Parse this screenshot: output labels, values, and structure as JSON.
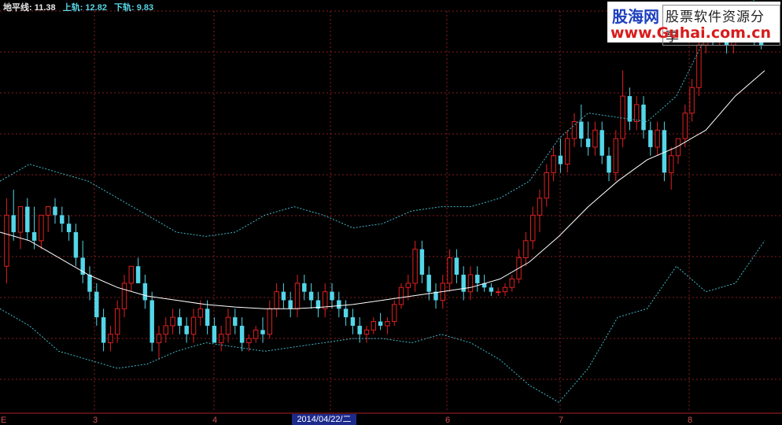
{
  "legend": {
    "ground_line": "地平线: 11.38",
    "upper_band": "上轨: 12.82",
    "lower_band": "下轨: 9.83"
  },
  "watermark": {
    "brand": "股海网",
    "tagline": "股票软件资源分享",
    "url": "www.Guhai.com.cn"
  },
  "xaxis": {
    "left_edge_label": "E",
    "month_labels": [
      "3",
      "4",
      "6",
      "7",
      "8"
    ],
    "crosshair_date": "2014/04/22/二"
  },
  "colors": {
    "background": "#000000",
    "grid": "#8a1c1c",
    "up_candle": "#e02020",
    "down_candle": "#54d6e8",
    "ma_line": "#ffffff",
    "band_line": "#3fb8c8"
  },
  "chart_data": {
    "type": "candlestick",
    "y_range": [
      8.9,
      13.6
    ],
    "candles": [
      [
        10.6,
        11.4,
        10.4,
        11.2
      ],
      [
        11.2,
        11.5,
        10.9,
        11.0
      ],
      [
        11.0,
        11.3,
        10.8,
        11.3
      ],
      [
        11.3,
        11.4,
        10.9,
        11.0
      ],
      [
        11.0,
        11.3,
        10.8,
        10.9
      ],
      [
        10.9,
        11.2,
        10.8,
        11.2
      ],
      [
        11.2,
        11.3,
        11.0,
        11.3
      ],
      [
        11.3,
        11.4,
        11.1,
        11.2
      ],
      [
        11.2,
        11.3,
        11.0,
        11.1
      ],
      [
        11.1,
        11.2,
        10.9,
        11.0
      ],
      [
        11.0,
        11.1,
        10.6,
        10.7
      ],
      [
        10.7,
        10.9,
        10.4,
        10.5
      ],
      [
        10.5,
        10.6,
        10.2,
        10.3
      ],
      [
        10.3,
        10.4,
        9.9,
        10.0
      ],
      [
        10.0,
        10.1,
        9.6,
        9.7
      ],
      [
        9.7,
        9.9,
        9.6,
        9.8
      ],
      [
        9.8,
        10.2,
        9.7,
        10.1
      ],
      [
        10.1,
        10.5,
        10.0,
        10.4
      ],
      [
        10.4,
        10.6,
        10.3,
        10.6
      ],
      [
        10.6,
        10.7,
        10.4,
        10.4
      ],
      [
        10.4,
        10.5,
        10.1,
        10.2
      ],
      [
        10.2,
        10.3,
        9.6,
        9.7
      ],
      [
        9.7,
        9.9,
        9.5,
        9.8
      ],
      [
        9.8,
        10.0,
        9.7,
        9.9
      ],
      [
        9.9,
        10.1,
        9.8,
        10.0
      ],
      [
        10.0,
        10.1,
        9.8,
        9.9
      ],
      [
        9.9,
        10.0,
        9.7,
        9.8
      ],
      [
        9.8,
        10.1,
        9.7,
        10.0
      ],
      [
        10.0,
        10.2,
        9.9,
        10.1
      ],
      [
        10.1,
        10.2,
        9.8,
        9.9
      ],
      [
        9.9,
        10.0,
        9.7,
        9.7
      ],
      [
        9.7,
        9.9,
        9.6,
        9.8
      ],
      [
        9.8,
        10.1,
        9.7,
        10.0
      ],
      [
        10.0,
        10.1,
        9.8,
        9.9
      ],
      [
        9.9,
        10.0,
        9.6,
        9.7
      ],
      [
        9.7,
        9.8,
        9.6,
        9.75
      ],
      [
        9.75,
        9.9,
        9.7,
        9.85
      ],
      [
        9.85,
        10.0,
        9.7,
        9.8
      ],
      [
        9.8,
        10.2,
        9.75,
        10.1
      ],
      [
        10.1,
        10.4,
        10.0,
        10.3
      ],
      [
        10.3,
        10.4,
        10.1,
        10.2
      ],
      [
        10.2,
        10.3,
        10.0,
        10.1
      ],
      [
        10.1,
        10.5,
        10.0,
        10.4
      ],
      [
        10.4,
        10.5,
        10.2,
        10.3
      ],
      [
        10.3,
        10.4,
        10.1,
        10.2
      ],
      [
        10.2,
        10.3,
        10.0,
        10.1
      ],
      [
        10.1,
        10.4,
        10.0,
        10.3
      ],
      [
        10.3,
        10.4,
        10.1,
        10.2
      ],
      [
        10.2,
        10.3,
        10.0,
        10.1
      ],
      [
        10.1,
        10.2,
        9.9,
        10.0
      ],
      [
        10.0,
        10.1,
        9.8,
        9.9
      ],
      [
        9.9,
        10.0,
        9.7,
        9.8
      ],
      [
        9.8,
        9.9,
        9.7,
        9.85
      ],
      [
        9.85,
        10.0,
        9.8,
        9.95
      ],
      [
        9.95,
        10.05,
        9.85,
        9.9
      ],
      [
        9.9,
        10.0,
        9.8,
        9.95
      ],
      [
        9.95,
        10.2,
        9.9,
        10.15
      ],
      [
        10.15,
        10.4,
        10.1,
        10.35
      ],
      [
        10.35,
        10.5,
        10.2,
        10.4
      ],
      [
        10.4,
        10.9,
        10.3,
        10.8
      ],
      [
        10.8,
        10.9,
        10.4,
        10.5
      ],
      [
        10.5,
        10.6,
        10.2,
        10.3
      ],
      [
        10.3,
        10.4,
        10.1,
        10.2
      ],
      [
        10.2,
        10.5,
        10.1,
        10.4
      ],
      [
        10.4,
        10.8,
        10.3,
        10.7
      ],
      [
        10.7,
        10.8,
        10.4,
        10.5
      ],
      [
        10.5,
        10.6,
        10.2,
        10.3
      ],
      [
        10.3,
        10.6,
        10.2,
        10.5
      ],
      [
        10.5,
        10.6,
        10.3,
        10.4
      ],
      [
        10.4,
        10.5,
        10.3,
        10.35
      ],
      [
        10.35,
        10.4,
        10.25,
        10.3
      ],
      [
        10.3,
        10.35,
        10.25,
        10.3
      ],
      [
        10.3,
        10.4,
        10.25,
        10.35
      ],
      [
        10.35,
        10.5,
        10.3,
        10.45
      ],
      [
        10.45,
        10.8,
        10.4,
        10.7
      ],
      [
        10.7,
        11.0,
        10.6,
        10.9
      ],
      [
        10.9,
        11.3,
        10.8,
        11.2
      ],
      [
        11.2,
        11.5,
        11.0,
        11.4
      ],
      [
        11.4,
        11.8,
        11.3,
        11.7
      ],
      [
        11.7,
        12.0,
        11.6,
        11.9
      ],
      [
        11.9,
        12.1,
        11.7,
        11.8
      ],
      [
        11.8,
        12.2,
        11.7,
        12.1
      ],
      [
        12.1,
        12.4,
        12.0,
        12.3
      ],
      [
        12.3,
        12.5,
        12.0,
        12.1
      ],
      [
        12.1,
        12.3,
        11.9,
        12.0
      ],
      [
        12.0,
        12.3,
        11.9,
        12.2
      ],
      [
        12.2,
        12.3,
        11.8,
        11.9
      ],
      [
        11.9,
        12.0,
        11.6,
        11.7
      ],
      [
        11.7,
        12.2,
        11.6,
        12.1
      ],
      [
        12.1,
        12.9,
        12.0,
        12.6
      ],
      [
        12.6,
        12.7,
        12.2,
        12.3
      ],
      [
        12.3,
        12.6,
        12.2,
        12.5
      ],
      [
        12.5,
        12.6,
        12.1,
        12.2
      ],
      [
        12.2,
        12.3,
        11.9,
        12.0
      ],
      [
        12.0,
        12.3,
        11.9,
        12.2
      ],
      [
        12.2,
        12.3,
        11.6,
        11.7
      ],
      [
        11.7,
        12.0,
        11.5,
        11.9
      ],
      [
        11.9,
        12.1,
        11.8,
        12.1
      ],
      [
        12.1,
        12.5,
        12.0,
        12.4
      ],
      [
        12.4,
        12.8,
        12.3,
        12.7
      ],
      [
        12.7,
        13.3,
        12.6,
        13.2
      ],
      [
        13.2,
        13.6,
        13.1,
        13.5
      ],
      [
        13.5,
        13.6,
        13.2,
        13.3
      ],
      [
        13.3,
        13.6,
        13.2,
        13.5
      ],
      [
        13.5,
        13.6,
        13.1,
        13.2
      ],
      [
        13.2,
        13.4,
        13.1,
        13.35
      ],
      [
        13.35,
        13.6,
        13.3,
        13.5
      ],
      [
        13.5,
        13.6,
        13.3,
        13.4
      ],
      [
        13.4,
        13.5,
        13.2,
        13.3
      ],
      [
        13.3,
        13.4,
        13.15,
        13.2
      ]
    ],
    "ground_line": [
      11.0,
      10.9,
      10.7,
      10.5,
      10.35,
      10.25,
      10.2,
      10.15,
      10.12,
      10.1,
      10.1,
      10.12,
      10.15,
      10.2,
      10.25,
      10.3,
      10.35,
      10.45,
      10.65,
      10.95,
      11.3,
      11.6,
      11.85,
      12.0,
      12.2,
      12.6,
      12.9
    ],
    "upper_band": [
      11.6,
      11.8,
      11.7,
      11.6,
      11.4,
      11.2,
      11.0,
      10.95,
      11.0,
      11.2,
      11.3,
      11.2,
      11.05,
      11.1,
      11.25,
      11.3,
      11.3,
      11.4,
      11.6,
      12.1,
      12.4,
      12.35,
      12.3,
      12.6,
      13.3,
      13.6,
      13.8
    ],
    "lower_band": [
      10.1,
      9.9,
      9.6,
      9.5,
      9.4,
      9.45,
      9.6,
      9.7,
      9.65,
      9.6,
      9.65,
      9.7,
      9.75,
      9.75,
      9.7,
      9.8,
      9.7,
      9.5,
      9.2,
      9.0,
      9.4,
      10.0,
      10.1,
      10.6,
      10.3,
      10.4,
      10.9
    ]
  }
}
